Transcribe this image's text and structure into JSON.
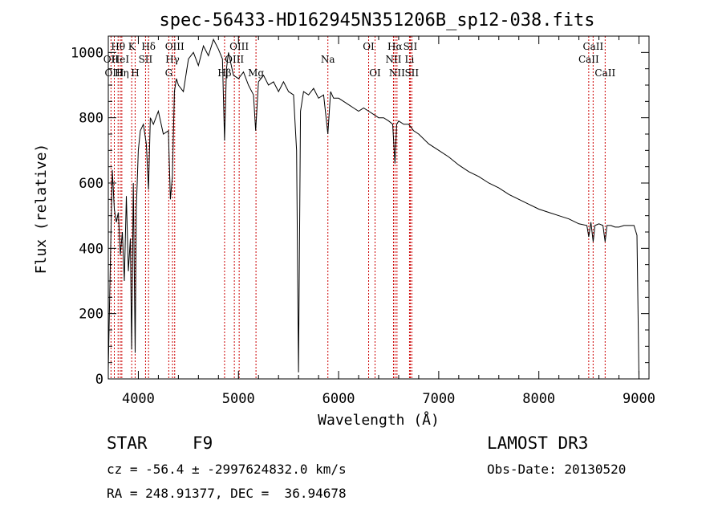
{
  "chart_data": {
    "type": "line",
    "title": "spec-56433-HD162945N351206B_sp12-038.fits",
    "xlabel": "Wavelength (Å)",
    "ylabel": "Flux (relative)",
    "xlim": [
      3700,
      9100
    ],
    "ylim": [
      0,
      1050
    ],
    "x_ticks": [
      4000,
      5000,
      6000,
      7000,
      8000,
      9000
    ],
    "y_ticks": [
      0,
      200,
      400,
      600,
      800,
      1000
    ],
    "series": [
      {
        "name": "flux",
        "x": [
          3700,
          3720,
          3740,
          3760,
          3780,
          3800,
          3820,
          3840,
          3860,
          3880,
          3900,
          3920,
          3933,
          3950,
          3968,
          3980,
          4000,
          4020,
          4050,
          4080,
          4101,
          4120,
          4150,
          4200,
          4250,
          4300,
          4320,
          4340,
          4360,
          4380,
          4400,
          4450,
          4500,
          4550,
          4600,
          4650,
          4700,
          4750,
          4800,
          4840,
          4861,
          4880,
          4900,
          4950,
          5000,
          5050,
          5100,
          5150,
          5172,
          5200,
          5250,
          5300,
          5350,
          5400,
          5450,
          5500,
          5550,
          5580,
          5600,
          5620,
          5650,
          5700,
          5750,
          5800,
          5850,
          5893,
          5920,
          5950,
          6000,
          6050,
          6100,
          6150,
          6200,
          6250,
          6300,
          6350,
          6400,
          6450,
          6500,
          6540,
          6563,
          6580,
          6600,
          6650,
          6700,
          6750,
          6800,
          6900,
          7000,
          7100,
          7200,
          7300,
          7400,
          7500,
          7600,
          7700,
          7800,
          7900,
          8000,
          8100,
          8200,
          8300,
          8400,
          8480,
          8498,
          8520,
          8542,
          8560,
          8600,
          8640,
          8662,
          8680,
          8720,
          8760,
          8800,
          8850,
          8900,
          8950,
          8980,
          9000
        ],
        "y": [
          30,
          350,
          640,
          520,
          480,
          510,
          380,
          450,
          300,
          560,
          330,
          430,
          90,
          600,
          80,
          520,
          700,
          760,
          780,
          720,
          580,
          800,
          780,
          820,
          750,
          760,
          550,
          620,
          880,
          920,
          900,
          880,
          980,
          1000,
          960,
          1020,
          990,
          1040,
          1010,
          980,
          730,
          950,
          1000,
          930,
          920,
          940,
          900,
          870,
          760,
          910,
          930,
          900,
          910,
          880,
          910,
          880,
          870,
          700,
          20,
          820,
          880,
          870,
          890,
          860,
          870,
          750,
          880,
          860,
          860,
          850,
          840,
          830,
          820,
          830,
          820,
          810,
          800,
          800,
          790,
          780,
          660,
          780,
          790,
          780,
          780,
          760,
          750,
          720,
          700,
          680,
          655,
          635,
          620,
          600,
          585,
          565,
          550,
          535,
          520,
          510,
          500,
          490,
          475,
          470,
          435,
          480,
          420,
          470,
          475,
          470,
          420,
          470,
          470,
          465,
          465,
          470,
          470,
          470,
          440,
          0
        ]
      }
    ],
    "line_markers": [
      {
        "label": "Hθ",
        "x": 3798,
        "row": 1
      },
      {
        "label": "OII",
        "x": 3727,
        "row": 2
      },
      {
        "label": "OIII",
        "x": 3760,
        "row": 3
      },
      {
        "label": "HeI",
        "x": 3820,
        "row": 2
      },
      {
        "label": "Hη",
        "x": 3835,
        "row": 3
      },
      {
        "label": "K",
        "x": 3934,
        "row": 1
      },
      {
        "label": "H",
        "x": 3968,
        "row": 3
      },
      {
        "label": "SII",
        "x": 4072,
        "row": 2
      },
      {
        "label": "Hδ",
        "x": 4102,
        "row": 1
      },
      {
        "label": "OIII",
        "x": 4363,
        "row": 1
      },
      {
        "label": "Hγ",
        "x": 4341,
        "row": 2
      },
      {
        "label": "G",
        "x": 4304,
        "row": 3
      },
      {
        "label": "OIII",
        "x": 5007,
        "row": 1
      },
      {
        "label": "OIII",
        "x": 4959,
        "row": 2
      },
      {
        "label": "Hβ",
        "x": 4861,
        "row": 3
      },
      {
        "label": "Mg",
        "x": 5175,
        "row": 3
      },
      {
        "label": "Na",
        "x": 5893,
        "row": 2
      },
      {
        "label": "OI",
        "x": 6300,
        "row": 1
      },
      {
        "label": "OI",
        "x": 6364,
        "row": 3
      },
      {
        "label": "Hα",
        "x": 6563,
        "row": 1
      },
      {
        "label": "NII",
        "x": 6548,
        "row": 2
      },
      {
        "label": "NII",
        "x": 6583,
        "row": 3
      },
      {
        "label": "SII",
        "x": 6716,
        "row": 1
      },
      {
        "label": "Li",
        "x": 6708,
        "row": 2
      },
      {
        "label": "SII",
        "x": 6731,
        "row": 3
      },
      {
        "label": "CaII",
        "x": 8542,
        "row": 1
      },
      {
        "label": "CaII",
        "x": 8498,
        "row": 2
      },
      {
        "label": "CaII",
        "x": 8662,
        "row": 3
      }
    ],
    "marker_color": "#cc0000",
    "grid": false
  },
  "info": {
    "class_label": "STAR",
    "subclass_label": "F9",
    "survey": "LAMOST DR3",
    "cz": "cz = -56.4 ± -2997624832.0 km/s",
    "obs_date": "Obs-Date: 20130520",
    "coords": "RA = 248.91377, DEC =  36.94678"
  }
}
